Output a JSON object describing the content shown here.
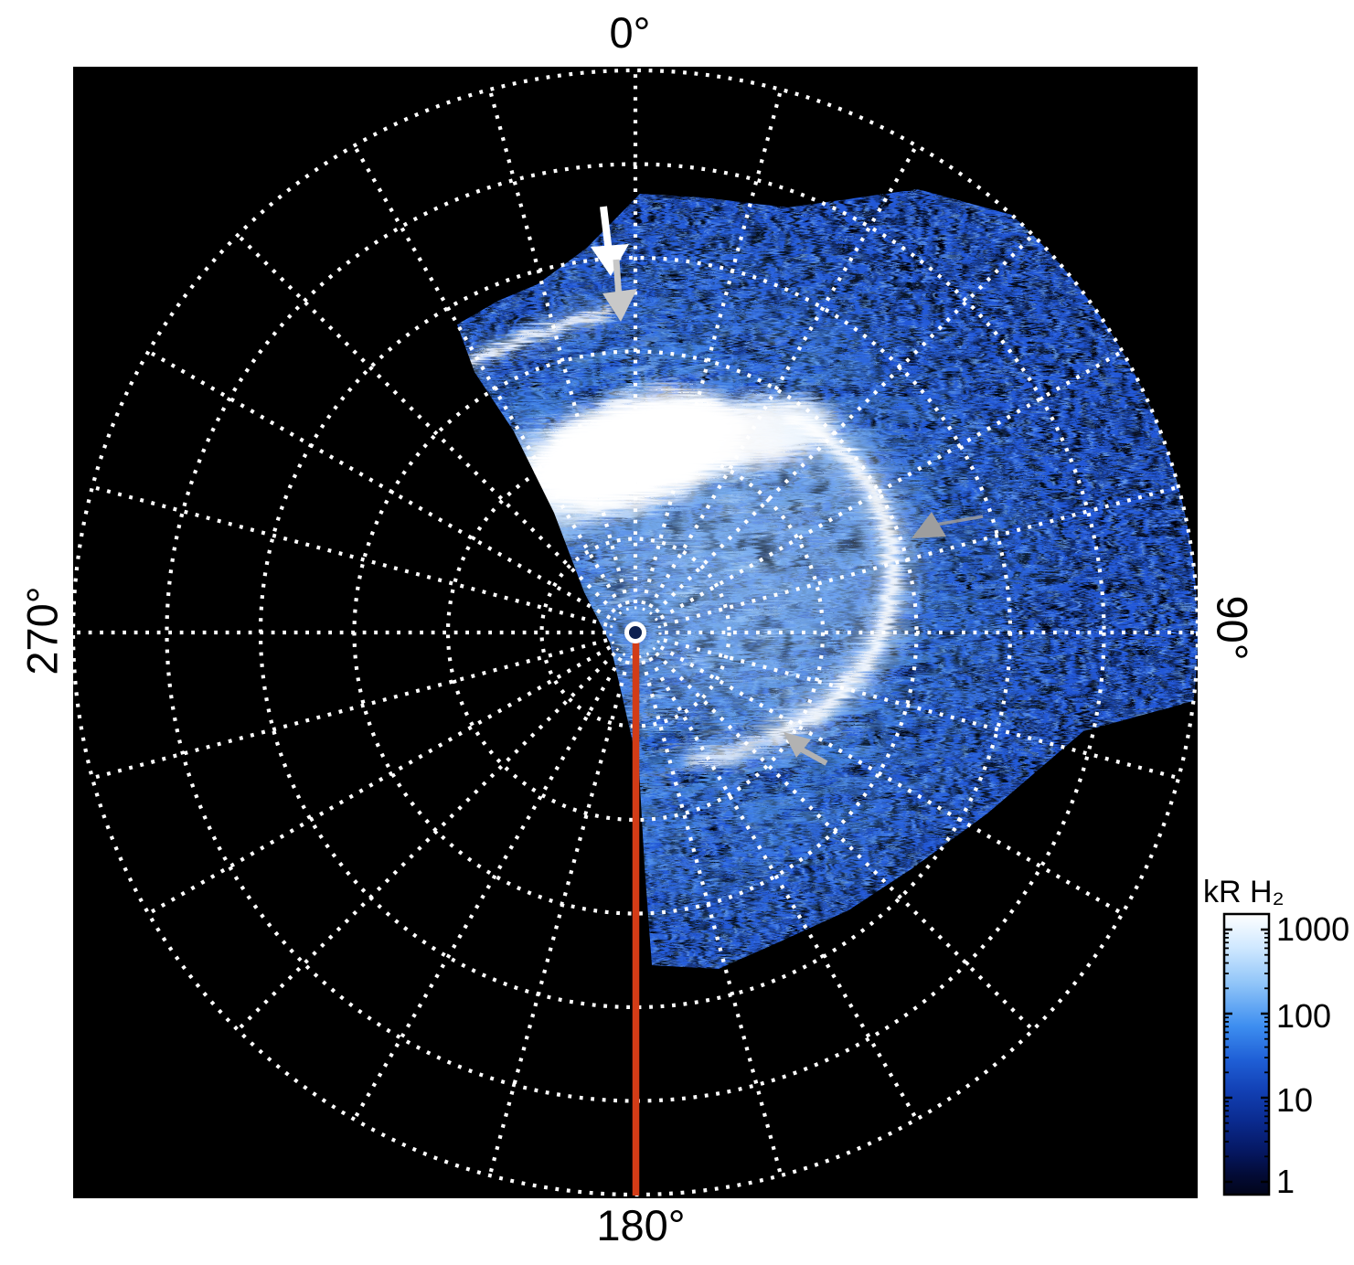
{
  "figure": {
    "angle_labels": {
      "top": "0°",
      "right": "90°",
      "bottom": "180°",
      "left": "270°"
    },
    "colorbar": {
      "title": "kR H₂",
      "tick_labels": [
        "1000",
        "100",
        "10",
        "1"
      ]
    }
  },
  "chart_data": {
    "type": "heatmap",
    "projection": "polar",
    "title": "",
    "angular_tick_labels": [
      "0°",
      "90°",
      "180°",
      "270°"
    ],
    "angular_ticks_deg": [
      0,
      90,
      180,
      270
    ],
    "grid": {
      "style": "dotted-white",
      "spoke_step_deg": 15,
      "ring_count": 6,
      "rings_uniform": true,
      "extra_inner_ring": true
    },
    "colorbar": {
      "label": "kR H₂",
      "scale": "log",
      "min": 1,
      "max": 1000,
      "ticks": [
        1000,
        100,
        10,
        1
      ],
      "colors_low_to_high": [
        "#02051a",
        "#051760",
        "#0a2a8e",
        "#1f5fd6",
        "#3d8ef0",
        "#bfe0ff",
        "#ffffff"
      ]
    },
    "features": [
      {
        "name": "emission-sector",
        "description": "blue H2 auroral emission filling azimuths ~325° through 0°/90° to ~155°, noisy speckled texture, brighter streaky region around the pole"
      },
      {
        "name": "main-auroral-oval-arc",
        "description": "bright saturated white arc east and south of the pole plus large white patch north-west of pole"
      },
      {
        "name": "polar-streak",
        "description": "thin bright streak near 0° azimuth flagged by white and gray arrows"
      }
    ],
    "annotations": [
      {
        "type": "arrow",
        "color": "white",
        "direction": "down",
        "points_to": "polar-streak"
      },
      {
        "type": "arrow",
        "color": "gray",
        "direction": "down",
        "points_to": "polar-streak"
      },
      {
        "type": "arrowhead",
        "color": "gray",
        "direction": "down-left",
        "points_to": "main-oval east side"
      },
      {
        "type": "arrow",
        "color": "gray",
        "direction": "up-left",
        "points_to": "main-oval south side"
      },
      {
        "type": "line",
        "color": "#d23c17",
        "along_azimuth_deg": 180,
        "from": "pole",
        "to": "plot edge at 180°"
      },
      {
        "type": "marker",
        "shape": "ring",
        "color": "white",
        "at": "pole"
      }
    ]
  }
}
